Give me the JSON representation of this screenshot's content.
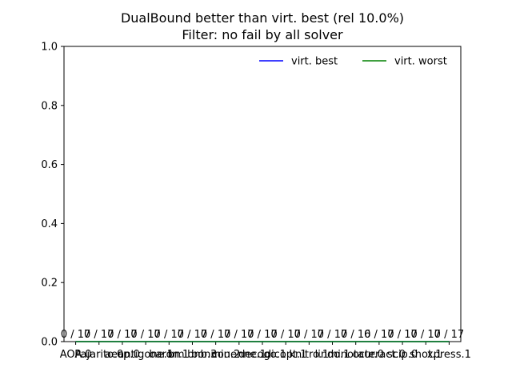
{
  "chart_data": {
    "type": "line",
    "title": "DualBound better than virt. best (rel 10.0%)",
    "subtitle": "Filter: no fail by all solver",
    "xlabel": "",
    "ylabel": "",
    "ylim": [
      0,
      1.0
    ],
    "yticks": [
      "0.0",
      "0.2",
      "0.4",
      "0.6",
      "0.8",
      "1.0"
    ],
    "categories": [
      "AOA.0",
      "Pajarito.0",
      "aecp.0",
      "antigone.1",
      "baron.1",
      "bmibnb.3",
      "bonmin.2",
      "couenne.1",
      "decogo.1",
      "dicopt.1",
      "knitro.1",
      "lindo.1",
      "minotaur.0",
      "octeract.0",
      "scip.0",
      "shot.1",
      "xpress.1"
    ],
    "annotations": [
      "0 / 17",
      "0 / 17",
      "0 / 17",
      "0 / 17",
      "0 / 17",
      "0 / 17",
      "0 / 17",
      "0 / 17",
      "0 / 17",
      "0 / 17",
      "0 / 17",
      "0 / 17",
      "0 / 16",
      "0 / 17",
      "0 / 17",
      "0 / 17",
      "0 / 17"
    ],
    "series": [
      {
        "name": "virt. best",
        "color": "#0000ff",
        "values": [
          0,
          0,
          0,
          0,
          0,
          0,
          0,
          0,
          0,
          0,
          0,
          0,
          0,
          0,
          0,
          0,
          0
        ]
      },
      {
        "name": "virt. worst",
        "color": "#008000",
        "values": [
          0,
          0,
          0,
          0,
          0,
          0,
          0,
          0,
          0,
          0,
          0,
          0,
          0,
          0,
          0,
          0,
          0
        ]
      }
    ],
    "grid": false,
    "legend_position": "top-right"
  }
}
